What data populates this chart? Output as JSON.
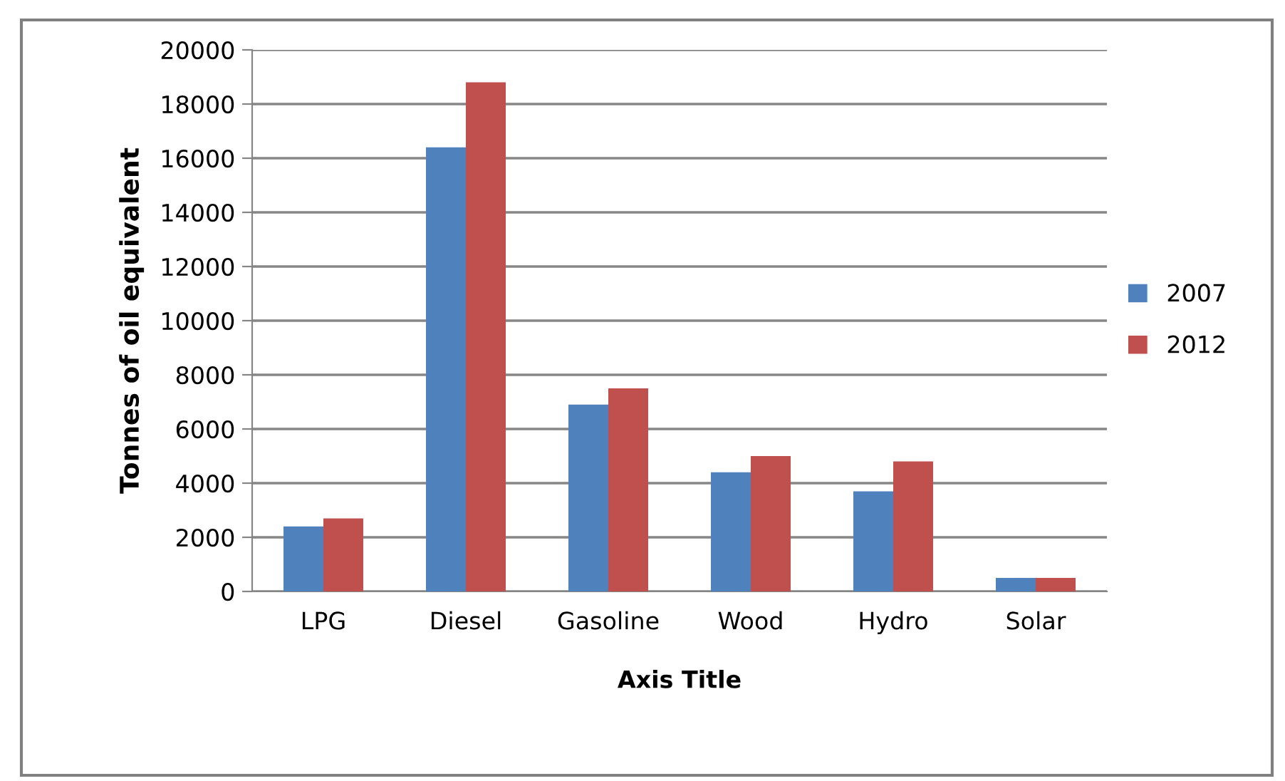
{
  "chart_data": {
    "type": "bar",
    "xlabel": "Axis Title",
    "ylabel": "Tonnes of oil equivalent",
    "categories": [
      "LPG",
      "Diesel",
      "Gasoline",
      "Wood",
      "Hydro",
      "Solar"
    ],
    "series": [
      {
        "name": "2007",
        "color": "#4f81bd",
        "values": [
          2400,
          16400,
          6900,
          4400,
          3700,
          500
        ]
      },
      {
        "name": "2012",
        "color": "#c0504d",
        "values": [
          2700,
          18800,
          7500,
          5000,
          4800,
          500
        ]
      }
    ],
    "ylim": [
      0,
      20000
    ],
    "yticks": [
      0,
      2000,
      4000,
      6000,
      8000,
      10000,
      12000,
      14000,
      16000,
      18000,
      20000
    ],
    "grid": "y",
    "legend": "right"
  }
}
